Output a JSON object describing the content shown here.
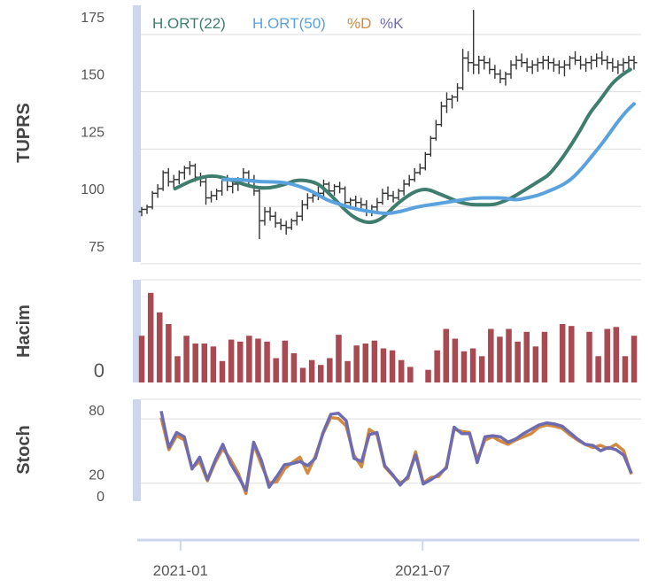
{
  "colors": {
    "ma22": "#3f7d6e",
    "ma50": "#5aa2de",
    "stoch_d": "#d28a3e",
    "stoch_k": "#6f6bb1",
    "volume": "#a94a52",
    "ohlc": "#333333",
    "grid": "#dddddd",
    "bracket": "#cdd6ec"
  },
  "chart_data": [
    {
      "type": "line",
      "panel": "price",
      "ylabel": "TUPRS",
      "ylim": [
        68,
        180
      ],
      "yticks": [
        "175",
        "150",
        "125",
        "100",
        "75"
      ],
      "ytick_values": [
        175,
        150,
        125,
        100,
        75
      ],
      "x": [
        "2020-12-03",
        "2020-12-07",
        "2020-12-11",
        "2020-12-15",
        "2020-12-19",
        "2020-12-23",
        "2020-12-27",
        "2020-12-31",
        "2021-01-04",
        "2021-01-08",
        "2021-01-12",
        "2021-01-16",
        "2021-01-20",
        "2021-01-24",
        "2021-01-28",
        "2021-02-01",
        "2021-02-05",
        "2021-02-09",
        "2021-02-13",
        "2021-02-17",
        "2021-02-21",
        "2021-02-25",
        "2021-03-01",
        "2021-03-05",
        "2021-03-09",
        "2021-03-13",
        "2021-03-17",
        "2021-03-21",
        "2021-03-25",
        "2021-03-29",
        "2021-04-02",
        "2021-04-06",
        "2021-04-10",
        "2021-04-14",
        "2021-04-18",
        "2021-04-22",
        "2021-04-26",
        "2021-04-30",
        "2021-05-04",
        "2021-05-08",
        "2021-05-12",
        "2021-05-16",
        "2021-05-20",
        "2021-05-24",
        "2021-05-28",
        "2021-06-01",
        "2021-06-05",
        "2021-06-09",
        "2021-06-13",
        "2021-06-17",
        "2021-06-21",
        "2021-06-25",
        "2021-06-29",
        "2021-07-03",
        "2021-07-07",
        "2021-07-11",
        "2021-07-15",
        "2021-07-19",
        "2021-07-23",
        "2021-07-27",
        "2021-07-31",
        "2021-08-04",
        "2021-08-08",
        "2021-08-12",
        "2021-08-16",
        "2021-08-20",
        "2021-08-24",
        "2021-08-28",
        "2021-09-01",
        "2021-09-05",
        "2021-09-09",
        "2021-09-13",
        "2021-09-17",
        "2021-09-21",
        "2021-09-25",
        "2021-09-29",
        "2021-10-03",
        "2021-10-07",
        "2021-10-11",
        "2021-10-15",
        "2021-10-19",
        "2021-10-23",
        "2021-10-27",
        "2021-10-31",
        "2021-11-04",
        "2021-11-08",
        "2021-11-12",
        "2021-11-16",
        "2021-11-20",
        "2021-11-24",
        "2021-11-28",
        "2021-12-02",
        "2021-12-06"
      ],
      "ohlc": [
        [
          90,
          92,
          88,
          91
        ],
        [
          91,
          93,
          89,
          92
        ],
        [
          92,
          99,
          91,
          98
        ],
        [
          98,
          102,
          96,
          100
        ],
        [
          100,
          108,
          99,
          107
        ],
        [
          107,
          109,
          101,
          103
        ],
        [
          103,
          106,
          100,
          104
        ],
        [
          104,
          108,
          102,
          107
        ],
        [
          107,
          110,
          104,
          109
        ],
        [
          109,
          112,
          106,
          110
        ],
        [
          110,
          111,
          103,
          105
        ],
        [
          105,
          107,
          101,
          103
        ],
        [
          103,
          105,
          93,
          96
        ],
        [
          96,
          99,
          94,
          97
        ],
        [
          97,
          100,
          95,
          99
        ],
        [
          99,
          105,
          97,
          104
        ],
        [
          104,
          106,
          99,
          101
        ],
        [
          101,
          104,
          98,
          102
        ],
        [
          102,
          105,
          99,
          104
        ],
        [
          104,
          109,
          103,
          107
        ],
        [
          107,
          108,
          102,
          104
        ],
        [
          104,
          106,
          97,
          99
        ],
        [
          99,
          100,
          78,
          86
        ],
        [
          86,
          92,
          84,
          90
        ],
        [
          90,
          92,
          86,
          88
        ],
        [
          88,
          90,
          83,
          85
        ],
        [
          85,
          87,
          82,
          84
        ],
        [
          84,
          86,
          80,
          83
        ],
        [
          83,
          87,
          82,
          86
        ],
        [
          86,
          90,
          84,
          88
        ],
        [
          88,
          95,
          86,
          93
        ],
        [
          93,
          98,
          91,
          96
        ],
        [
          96,
          99,
          94,
          97
        ],
        [
          97,
          101,
          95,
          98
        ],
        [
          98,
          104,
          96,
          102
        ],
        [
          102,
          103,
          97,
          99
        ],
        [
          99,
          102,
          97,
          101
        ],
        [
          101,
          103,
          98,
          100
        ],
        [
          100,
          101,
          92,
          94
        ],
        [
          94,
          96,
          91,
          95
        ],
        [
          95,
          97,
          92,
          94
        ],
        [
          94,
          96,
          91,
          93
        ],
        [
          93,
          95,
          88,
          90
        ],
        [
          90,
          93,
          88,
          92
        ],
        [
          92,
          96,
          90,
          94
        ],
        [
          94,
          100,
          93,
          98
        ],
        [
          98,
          101,
          95,
          97
        ],
        [
          97,
          99,
          94,
          96
        ],
        [
          96,
          100,
          95,
          99
        ],
        [
          99,
          104,
          97,
          102
        ],
        [
          102,
          106,
          101,
          104
        ],
        [
          104,
          109,
          103,
          107
        ],
        [
          107,
          111,
          106,
          109
        ],
        [
          109,
          116,
          108,
          115
        ],
        [
          115,
          123,
          114,
          122
        ],
        [
          122,
          130,
          121,
          128
        ],
        [
          128,
          138,
          127,
          136
        ],
        [
          136,
          142,
          133,
          139
        ],
        [
          139,
          141,
          135,
          140
        ],
        [
          140,
          146,
          138,
          144
        ],
        [
          144,
          161,
          143,
          157
        ],
        [
          157,
          160,
          151,
          155
        ],
        [
          155,
          178,
          150,
          154
        ],
        [
          154,
          158,
          150,
          156
        ],
        [
          156,
          158,
          152,
          155
        ],
        [
          155,
          157,
          150,
          152
        ],
        [
          152,
          154,
          148,
          150
        ],
        [
          150,
          152,
          146,
          148
        ],
        [
          148,
          151,
          145,
          150
        ],
        [
          150,
          156,
          148,
          154
        ],
        [
          154,
          158,
          152,
          156
        ],
        [
          156,
          159,
          153,
          155
        ],
        [
          155,
          157,
          151,
          153
        ],
        [
          153,
          156,
          150,
          154
        ],
        [
          154,
          157,
          151,
          155
        ],
        [
          155,
          158,
          152,
          156
        ],
        [
          156,
          158,
          152,
          155
        ],
        [
          155,
          157,
          151,
          154
        ],
        [
          154,
          156,
          150,
          153
        ],
        [
          153,
          156,
          149,
          154
        ],
        [
          154,
          158,
          152,
          157
        ],
        [
          157,
          160,
          154,
          156
        ],
        [
          156,
          158,
          152,
          154
        ],
        [
          154,
          157,
          151,
          155
        ],
        [
          155,
          158,
          152,
          156
        ],
        [
          156,
          159,
          153,
          157
        ],
        [
          157,
          160,
          154,
          156
        ],
        [
          156,
          158,
          152,
          155
        ],
        [
          155,
          157,
          151,
          153
        ],
        [
          153,
          156,
          150,
          154
        ],
        [
          154,
          157,
          151,
          155
        ],
        [
          155,
          158,
          152,
          156
        ],
        [
          156,
          158,
          152,
          155
        ]
      ],
      "series": [
        {
          "name": "H.ORT(22)",
          "legend": "H.ORT(22)",
          "color_key": "ma22",
          "points": [
            [
              9,
              100
            ],
            [
              14,
              104
            ],
            [
              19,
              106
            ],
            [
              24,
              104
            ],
            [
              29,
              101
            ],
            [
              34,
              100
            ],
            [
              39,
              102
            ],
            [
              42,
              104
            ],
            [
              47,
              103
            ],
            [
              50,
              99
            ],
            [
              53,
              94
            ],
            [
              56,
              89
            ],
            [
              59,
              86
            ],
            [
              62,
              85
            ],
            [
              65,
              87
            ],
            [
              68,
              92
            ],
            [
              71,
              96
            ],
            [
              74,
              99
            ],
            [
              77,
              100
            ],
            [
              80,
              98
            ],
            [
              83,
              96
            ],
            [
              86,
              94
            ],
            [
              89,
              93
            ],
            [
              92,
              93
            ],
            [
              95,
              93
            ],
            [
              97,
              94
            ],
            [
              100,
              96
            ],
            [
              103,
              99
            ],
            [
              105,
              101
            ],
            [
              108,
              104
            ],
            [
              110,
              106
            ],
            [
              113,
              112
            ],
            [
              116,
              119
            ],
            [
              119,
              127
            ],
            [
              121,
              133
            ],
            [
              124,
              139
            ],
            [
              127,
              146
            ],
            [
              130,
              150
            ],
            [
              132,
              152
            ]
          ]
        },
        {
          "name": "H.ORT(50)",
          "legend": "H.ORT(50)",
          "color_key": "ma50",
          "points": [
            [
              22,
              104
            ],
            [
              27,
              104
            ],
            [
              32,
              103
            ],
            [
              37,
              103
            ],
            [
              41,
              102
            ],
            [
              46,
              99
            ],
            [
              50,
              95
            ],
            [
              54,
              93
            ],
            [
              58,
              91
            ],
            [
              62,
              90
            ],
            [
              66,
              89
            ],
            [
              70,
              90
            ],
            [
              74,
              92
            ],
            [
              78,
              93
            ],
            [
              82,
              94
            ],
            [
              86,
              95
            ],
            [
              90,
              96
            ],
            [
              94,
              96
            ],
            [
              98,
              96
            ],
            [
              101,
              95
            ],
            [
              104,
              96
            ],
            [
              107,
              97
            ],
            [
              110,
              99
            ],
            [
              113,
              101
            ],
            [
              116,
              104
            ],
            [
              119,
              109
            ],
            [
              122,
              115
            ],
            [
              125,
              121
            ],
            [
              128,
              128
            ],
            [
              131,
              134
            ],
            [
              133,
              137
            ]
          ]
        }
      ]
    },
    {
      "type": "bar",
      "panel": "volume",
      "ylabel": "Hacim",
      "yticks": [
        "0"
      ],
      "ytick_values": [
        0
      ],
      "ylim": [
        0,
        100
      ],
      "values": [
        48,
        92,
        72,
        60,
        27,
        48,
        40,
        40,
        37,
        22,
        44,
        42,
        48,
        45,
        42,
        25,
        43,
        30,
        15,
        23,
        18,
        25,
        49,
        22,
        38,
        40,
        43,
        35,
        33,
        23,
        16,
        0,
        13,
        33,
        55,
        45,
        32,
        35,
        27,
        55,
        47,
        55,
        42,
        52,
        37,
        52,
        0,
        60,
        58,
        0,
        52,
        27,
        55,
        57,
        27,
        48
      ]
    },
    {
      "type": "line",
      "panel": "stoch",
      "ylabel": "Stoch",
      "yticks": [
        "80",
        "20",
        "0"
      ],
      "ytick_values": [
        80,
        20,
        0
      ],
      "ylim": [
        -5,
        90
      ],
      "series": [
        {
          "name": "%D",
          "legend": "%D",
          "color_key": "stoch_d",
          "values": [
            73,
            43,
            56,
            52,
            26,
            32,
            14,
            31,
            44,
            34,
            21,
            2,
            48,
            29,
            12,
            13,
            25,
            31,
            36,
            21,
            37,
            58,
            73,
            72,
            65,
            38,
            27,
            62,
            57,
            27,
            19,
            12,
            16,
            41,
            12,
            17,
            18,
            27,
            62,
            60,
            59,
            34,
            52,
            55,
            51,
            48,
            52,
            55,
            58,
            64,
            66,
            65,
            63,
            57,
            52,
            48,
            45,
            47,
            44,
            48,
            42,
            20
          ]
        },
        {
          "name": "%K",
          "legend": "%K",
          "color_key": "stoch_k",
          "values": [
            79,
            45,
            59,
            55,
            25,
            36,
            15,
            33,
            48,
            30,
            18,
            5,
            50,
            33,
            8,
            18,
            29,
            30,
            32,
            28,
            35,
            59,
            76,
            77,
            70,
            35,
            32,
            57,
            59,
            28,
            20,
            10,
            18,
            38,
            11,
            15,
            20,
            26,
            64,
            58,
            58,
            31,
            55,
            56,
            55,
            50,
            53,
            58,
            62,
            66,
            68,
            67,
            65,
            59,
            53,
            48,
            47,
            42,
            45,
            43,
            38,
            21
          ]
        }
      ]
    },
    {
      "type": "axis",
      "panel": "xaxis",
      "xticks": [
        "2021-01",
        "2021-07"
      ],
      "xtick_dates": [
        "2021-01-01",
        "2021-07-01"
      ]
    }
  ]
}
